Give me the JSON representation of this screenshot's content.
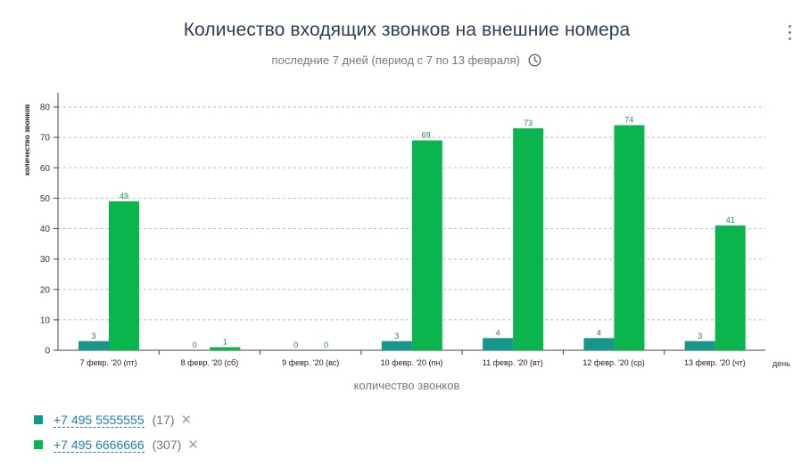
{
  "header": {
    "title": "Количество входящих звонков на внешние номера",
    "subtitle": "последние 7 дней (период с 7 по 13 февраля)",
    "subtitle_icon": "clock-icon",
    "menu_icon": "more-vertical-icon"
  },
  "chart_data": {
    "type": "bar",
    "title": "Количество входящих звонков на внешние номера",
    "subtitle": "последние 7 дней (период с 7 по 13 февраля)",
    "xlabel": "количество звонков",
    "x_unit_label": "день",
    "ylabel": "количество звонков",
    "ylim": [
      0,
      80
    ],
    "yticks": [
      0,
      10,
      20,
      30,
      40,
      50,
      60,
      70,
      80
    ],
    "grid": true,
    "categories": [
      "7 февр. '20 (пт)",
      "8 февр. '20 (сб)",
      "9 февр. '20 (вс)",
      "10 февр. '20 (пн)",
      "11 февр. '20 (вт)",
      "12 февр. '20 (ср)",
      "13 февр. '20 (чт)"
    ],
    "series": [
      {
        "name": "+7 495 5555555",
        "color": "#16978a",
        "values": [
          3,
          0,
          0,
          3,
          4,
          4,
          3
        ]
      },
      {
        "name": "+7 495 6666666",
        "color": "#0ab54e",
        "values": [
          49,
          1,
          0,
          69,
          73,
          74,
          41
        ]
      }
    ],
    "data_labels": [
      [
        "3",
        "0",
        "0",
        "3",
        "4",
        "4",
        "3"
      ],
      [
        "49",
        "1",
        "0",
        "69.",
        "73",
        "74",
        "41"
      ]
    ]
  },
  "legend": {
    "items": [
      {
        "label": "+7 495 5555555",
        "count": "(17)",
        "remove": "✕",
        "color": "#16978a"
      },
      {
        "label": "+7 495 6666666",
        "count": "(307)",
        "remove": "✕",
        "color": "#0ab54e"
      }
    ]
  }
}
